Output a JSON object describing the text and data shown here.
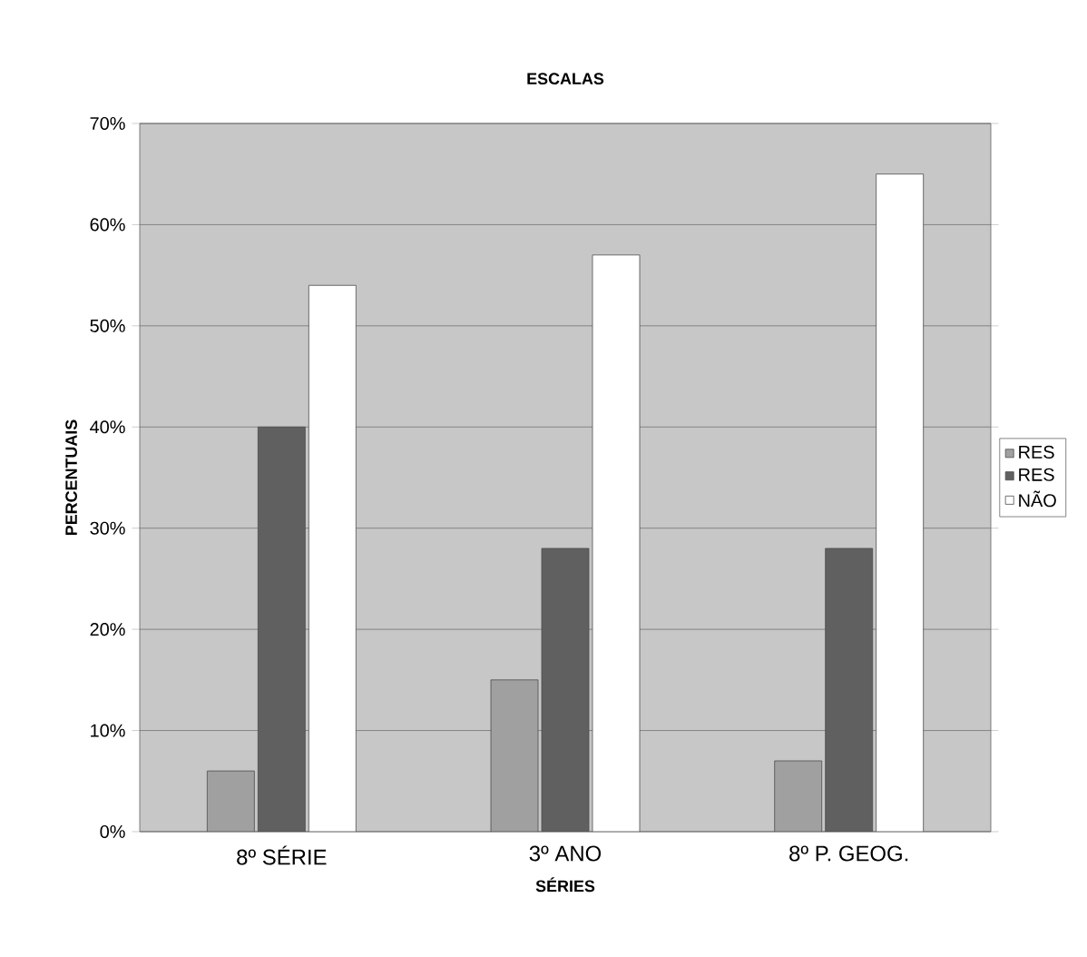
{
  "chart_data": {
    "type": "bar",
    "title": "ESCALAS",
    "xlabel": "SÉRIES",
    "ylabel": "PERCENTUAIS",
    "categories": [
      "8º SÉRIE",
      "3º ANO",
      "8º P. GEOG."
    ],
    "series": [
      {
        "name": "RES",
        "color": "#a0a0a0",
        "values": [
          6,
          15,
          7
        ]
      },
      {
        "name": "RES",
        "color": "#606060",
        "values": [
          40,
          28,
          28
        ]
      },
      {
        "name": "NÃO",
        "color": "#ffffff",
        "values": [
          54,
          57,
          65
        ]
      }
    ],
    "ylim": [
      0,
      70
    ],
    "yticks": [
      {
        "value": 0,
        "label": "0%"
      },
      {
        "value": 10,
        "label": "10%"
      },
      {
        "value": 20,
        "label": "20%"
      },
      {
        "value": 30,
        "label": "30%"
      },
      {
        "value": 40,
        "label": "40%"
      },
      {
        "value": 50,
        "label": "50%"
      },
      {
        "value": 60,
        "label": "60%"
      },
      {
        "value": 70,
        "label": "70%"
      }
    ],
    "grid": "y",
    "legend": "right"
  }
}
